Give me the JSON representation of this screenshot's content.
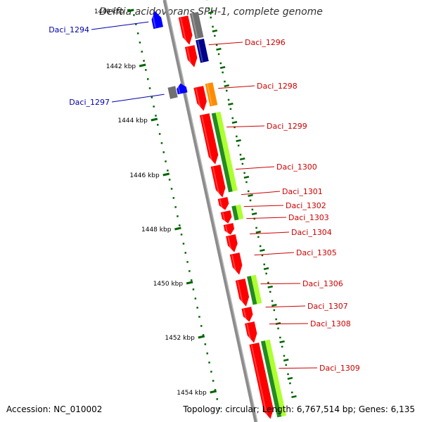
{
  "title": "Delftia acidovorans SPH-1, complete genome",
  "footer": {
    "accession": "Accession: NC_010002",
    "topology": "Topology: circular; Length: 6,767,514 bp; Genes: 6,135"
  },
  "colors": {
    "backbone": "#8c8c8c",
    "forward_gene": "#ff0000",
    "reverse_gene": "#0000ff",
    "navy": "#00008b",
    "gray": "#707070",
    "orange": "#ff8c00",
    "green_dark": "#228b22",
    "green_light": "#adff2f",
    "tick": "#006400",
    "label_forward": "#cc0000",
    "label_reverse": "#0000aa"
  },
  "kbp_ticks": [
    "1440 kbp",
    "1442 kbp",
    "1444 kbp",
    "1446 kbp",
    "1448 kbp",
    "1450 kbp",
    "1452 kbp",
    "1454 kbp"
  ],
  "gene_labels": {
    "reverse": [
      "Daci_1294",
      "Daci_1297"
    ],
    "forward": [
      "Daci_1296",
      "Daci_1298",
      "Daci_1299",
      "Daci_1300",
      "Daci_1301",
      "Daci_1302",
      "Daci_1303",
      "Daci_1304",
      "Daci_1305",
      "Daci_1306",
      "Daci_1307",
      "Daci_1308",
      "Daci_1309"
    ]
  }
}
